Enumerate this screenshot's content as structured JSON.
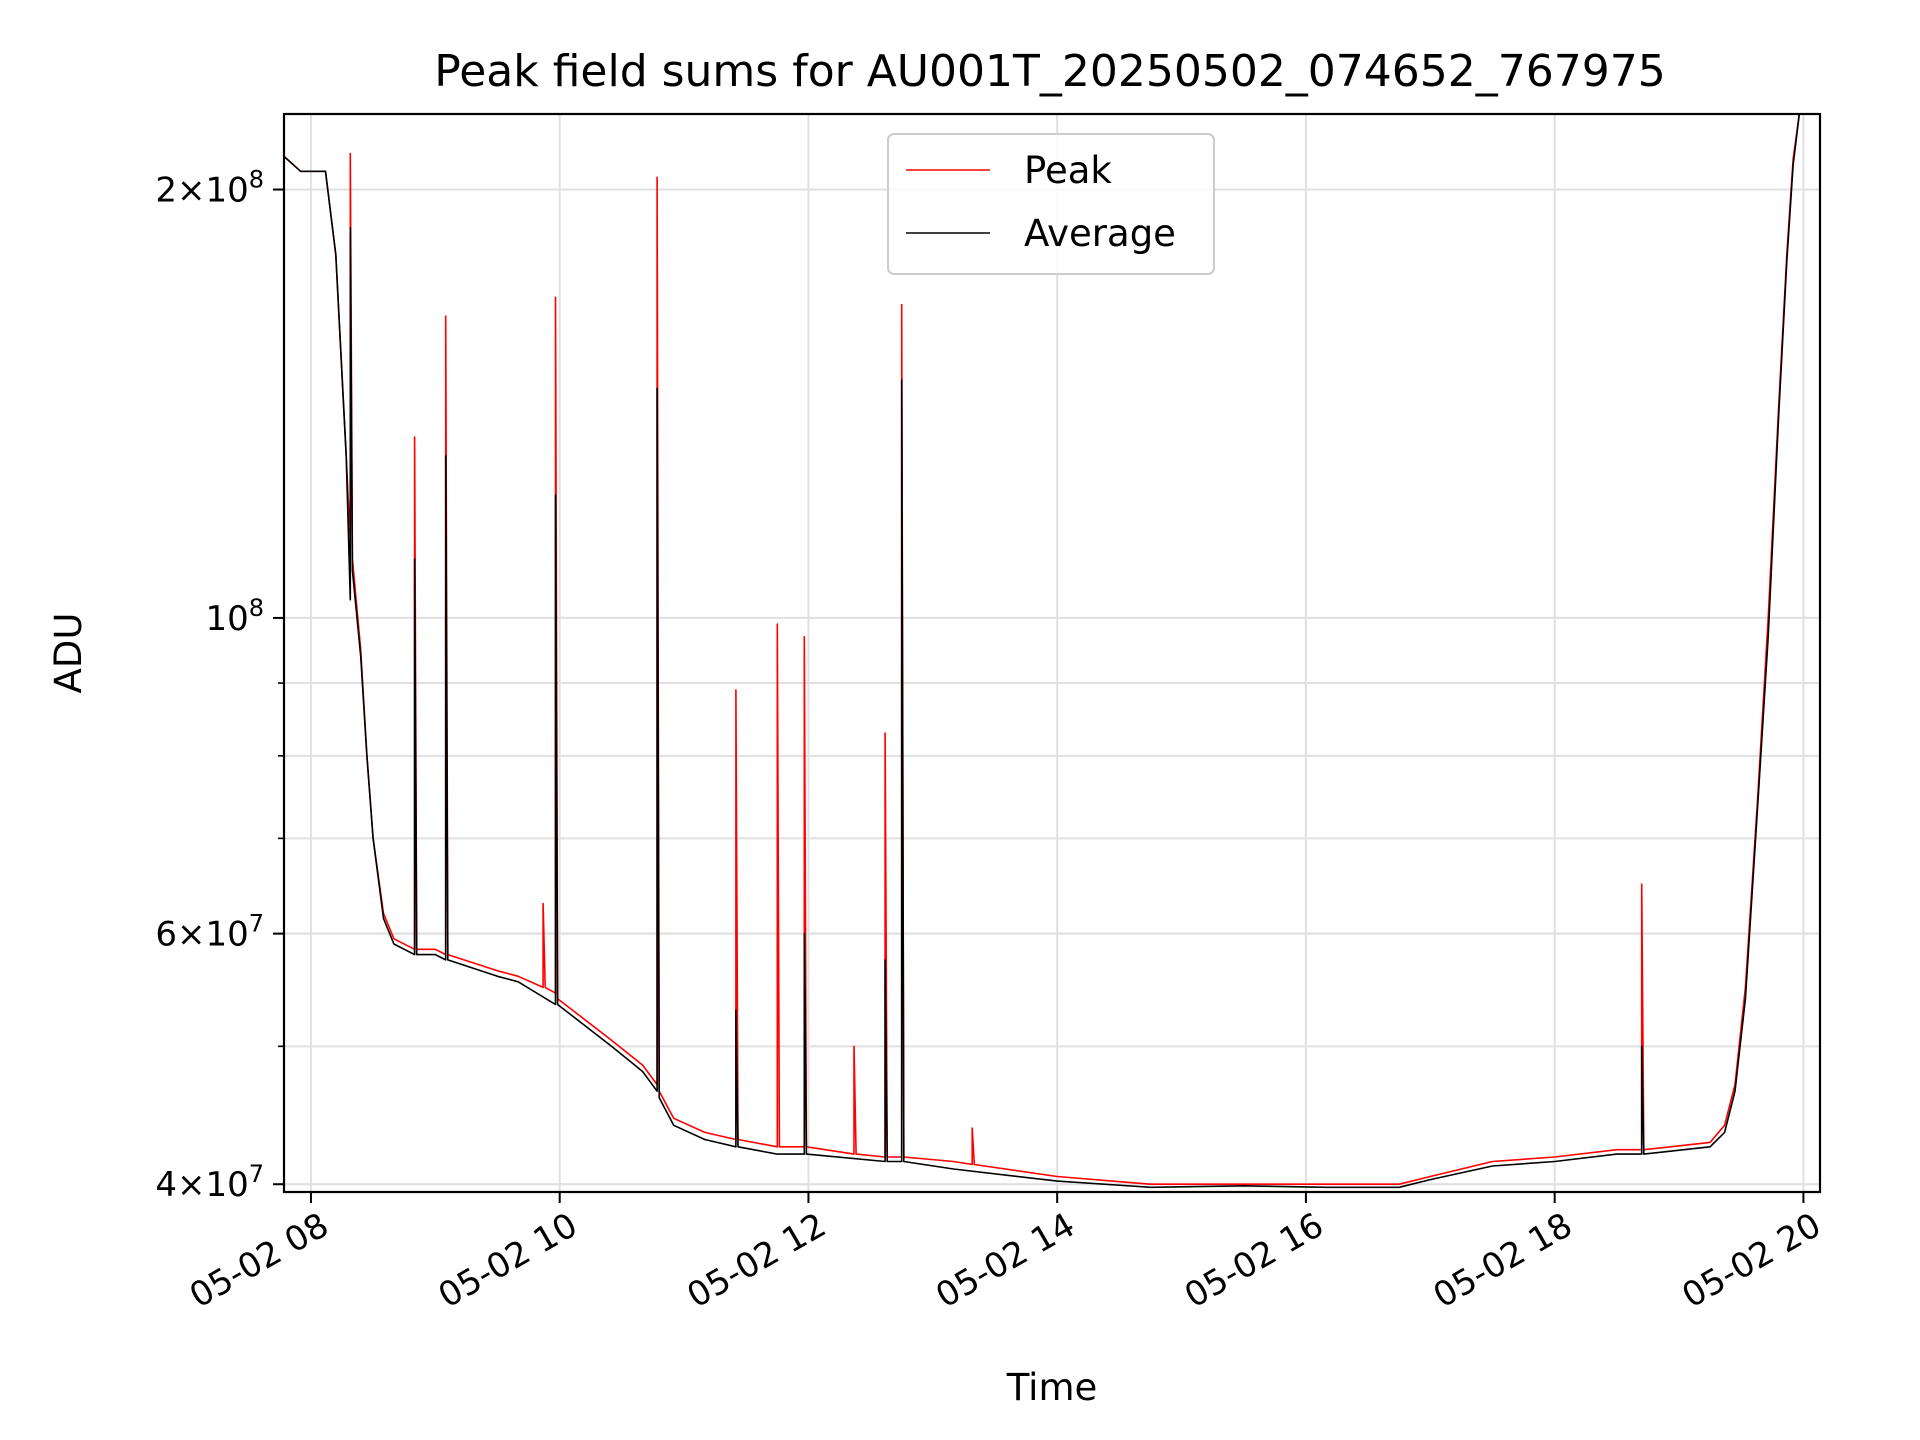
{
  "chart_data": {
    "type": "line",
    "title": "Peak field sums for AU001T_20250502_074652_767975",
    "xlabel": "Time",
    "ylabel": "ADU",
    "xscale": "time",
    "yscale": "log",
    "xlim": [
      "2025-05-02 07:47",
      "2025-05-02 20:08"
    ],
    "ylim": [
      39500000,
      226000000
    ],
    "x_ticks": [
      "05-02 08",
      "05-02 10",
      "05-02 12",
      "05-02 14",
      "05-02 16",
      "05-02 18",
      "05-02 20"
    ],
    "y_ticks": [
      {
        "value": 40000000,
        "mantissa": "4",
        "exponent": "7"
      },
      {
        "value": 60000000,
        "mantissa": "6",
        "exponent": "7"
      },
      {
        "value": 100000000,
        "mantissa": "",
        "exponent": "8"
      },
      {
        "value": 200000000,
        "mantissa": "2",
        "exponent": "8"
      }
    ],
    "grid": true,
    "legend_position": "upper center",
    "series": [
      {
        "name": "Peak",
        "color": "#ff0000",
        "points": [
          [
            "2025-05-02 07:47",
            211000000
          ],
          [
            "2025-05-02 07:55",
            206000000
          ],
          [
            "2025-05-02 08:07",
            206000000
          ],
          [
            "2025-05-02 08:12",
            180000000
          ],
          [
            "2025-05-02 08:17",
            130000000
          ],
          [
            "2025-05-02 08:19",
            113000000
          ],
          [
            "2025-05-02 08:19",
            212000000
          ],
          [
            "2025-05-02 08:20",
            110000000
          ],
          [
            "2025-05-02 08:24",
            95000000
          ],
          [
            "2025-05-02 08:27",
            80000000
          ],
          [
            "2025-05-02 08:30",
            70000000
          ],
          [
            "2025-05-02 08:35",
            62000000
          ],
          [
            "2025-05-02 08:40",
            59500000
          ],
          [
            "2025-05-02 08:50",
            58500000
          ],
          [
            "2025-05-02 08:50",
            134000000
          ],
          [
            "2025-05-02 08:51",
            58500000
          ],
          [
            "2025-05-02 09:00",
            58500000
          ],
          [
            "2025-05-02 09:05",
            58000000
          ],
          [
            "2025-05-02 09:05",
            163000000
          ],
          [
            "2025-05-02 09:06",
            58000000
          ],
          [
            "2025-05-02 09:30",
            56500000
          ],
          [
            "2025-05-02 09:40",
            56000000
          ],
          [
            "2025-05-02 09:52",
            55000000
          ],
          [
            "2025-05-02 09:52",
            63000000
          ],
          [
            "2025-05-02 09:53",
            55000000
          ],
          [
            "2025-05-02 09:58",
            54500000
          ],
          [
            "2025-05-02 09:58",
            168000000
          ],
          [
            "2025-05-02 09:59",
            54000000
          ],
          [
            "2025-05-02 10:10",
            52500000
          ],
          [
            "2025-05-02 10:25",
            50500000
          ],
          [
            "2025-05-02 10:40",
            48500000
          ],
          [
            "2025-05-02 10:47",
            47000000
          ],
          [
            "2025-05-02 10:47",
            204000000
          ],
          [
            "2025-05-02 10:48",
            46500000
          ],
          [
            "2025-05-02 10:55",
            44500000
          ],
          [
            "2025-05-02 11:10",
            43500000
          ],
          [
            "2025-05-02 11:25",
            43000000
          ],
          [
            "2025-05-02 11:25",
            89000000
          ],
          [
            "2025-05-02 11:26",
            43000000
          ],
          [
            "2025-05-02 11:45",
            42500000
          ],
          [
            "2025-05-02 11:45",
            99000000
          ],
          [
            "2025-05-02 11:46",
            42500000
          ],
          [
            "2025-05-02 11:58",
            42500000
          ],
          [
            "2025-05-02 11:58",
            97000000
          ],
          [
            "2025-05-02 11:59",
            42500000
          ],
          [
            "2025-05-02 12:22",
            42000000
          ],
          [
            "2025-05-02 12:22",
            50000000
          ],
          [
            "2025-05-02 12:23",
            42000000
          ],
          [
            "2025-05-02 12:37",
            41800000
          ],
          [
            "2025-05-02 12:37",
            83000000
          ],
          [
            "2025-05-02 12:38",
            41800000
          ],
          [
            "2025-05-02 12:45",
            41800000
          ],
          [
            "2025-05-02 12:45",
            166000000
          ],
          [
            "2025-05-02 12:46",
            41800000
          ],
          [
            "2025-05-02 13:10",
            41500000
          ],
          [
            "2025-05-02 13:19",
            41300000
          ],
          [
            "2025-05-02 13:19",
            43800000
          ],
          [
            "2025-05-02 13:20",
            41300000
          ],
          [
            "2025-05-02 14:00",
            40500000
          ],
          [
            "2025-05-02 14:45",
            40000000
          ],
          [
            "2025-05-02 15:30",
            40000000
          ],
          [
            "2025-05-02 16:10",
            40000000
          ],
          [
            "2025-05-02 16:45",
            40000000
          ],
          [
            "2025-05-02 17:00",
            40500000
          ],
          [
            "2025-05-02 17:30",
            41500000
          ],
          [
            "2025-05-02 18:00",
            41800000
          ],
          [
            "2025-05-02 18:30",
            42300000
          ],
          [
            "2025-05-02 18:42",
            42300000
          ],
          [
            "2025-05-02 18:42",
            65000000
          ],
          [
            "2025-05-02 18:43",
            42300000
          ],
          [
            "2025-05-02 19:15",
            42800000
          ],
          [
            "2025-05-02 19:22",
            44000000
          ],
          [
            "2025-05-02 19:27",
            47000000
          ],
          [
            "2025-05-02 19:32",
            55000000
          ],
          [
            "2025-05-02 19:38",
            75000000
          ],
          [
            "2025-05-02 19:43",
            100000000
          ],
          [
            "2025-05-02 19:48",
            140000000
          ],
          [
            "2025-05-02 19:52",
            180000000
          ],
          [
            "2025-05-02 19:55",
            210000000
          ],
          [
            "2025-05-02 19:58",
            226000000
          ]
        ]
      },
      {
        "name": "Average",
        "color": "#000000",
        "points": [
          [
            "2025-05-02 07:47",
            211000000
          ],
          [
            "2025-05-02 07:55",
            206000000
          ],
          [
            "2025-05-02 08:07",
            206000000
          ],
          [
            "2025-05-02 08:12",
            180000000
          ],
          [
            "2025-05-02 08:17",
            130000000
          ],
          [
            "2025-05-02 08:19",
            103000000
          ],
          [
            "2025-05-02 08:19",
            188000000
          ],
          [
            "2025-05-02 08:20",
            108000000
          ],
          [
            "2025-05-02 08:24",
            94000000
          ],
          [
            "2025-05-02 08:27",
            80000000
          ],
          [
            "2025-05-02 08:30",
            70000000
          ],
          [
            "2025-05-02 08:35",
            61500000
          ],
          [
            "2025-05-02 08:40",
            59000000
          ],
          [
            "2025-05-02 08:50",
            58000000
          ],
          [
            "2025-05-02 08:50",
            110000000
          ],
          [
            "2025-05-02 08:51",
            58000000
          ],
          [
            "2025-05-02 09:00",
            58000000
          ],
          [
            "2025-05-02 09:05",
            57500000
          ],
          [
            "2025-05-02 09:05",
            130000000
          ],
          [
            "2025-05-02 09:06",
            57500000
          ],
          [
            "2025-05-02 09:30",
            56000000
          ],
          [
            "2025-05-02 09:40",
            55500000
          ],
          [
            "2025-05-02 09:58",
            53500000
          ],
          [
            "2025-05-02 09:58",
            122000000
          ],
          [
            "2025-05-02 09:59",
            53500000
          ],
          [
            "2025-05-02 10:10",
            52000000
          ],
          [
            "2025-05-02 10:25",
            50000000
          ],
          [
            "2025-05-02 10:40",
            48000000
          ],
          [
            "2025-05-02 10:47",
            46500000
          ],
          [
            "2025-05-02 10:47",
            145000000
          ],
          [
            "2025-05-02 10:48",
            46000000
          ],
          [
            "2025-05-02 10:55",
            44000000
          ],
          [
            "2025-05-02 11:10",
            43000000
          ],
          [
            "2025-05-02 11:25",
            42500000
          ],
          [
            "2025-05-02 11:25",
            53000000
          ],
          [
            "2025-05-02 11:26",
            42500000
          ],
          [
            "2025-05-02 11:45",
            42000000
          ],
          [
            "2025-05-02 11:58",
            42000000
          ],
          [
            "2025-05-02 11:58",
            60000000
          ],
          [
            "2025-05-02 11:59",
            42000000
          ],
          [
            "2025-05-02 12:37",
            41500000
          ],
          [
            "2025-05-02 12:37",
            57500000
          ],
          [
            "2025-05-02 12:38",
            41500000
          ],
          [
            "2025-05-02 12:45",
            41500000
          ],
          [
            "2025-05-02 12:45",
            147000000
          ],
          [
            "2025-05-02 12:46",
            41500000
          ],
          [
            "2025-05-02 13:10",
            41000000
          ],
          [
            "2025-05-02 14:00",
            40200000
          ],
          [
            "2025-05-02 14:45",
            39800000
          ],
          [
            "2025-05-02 15:30",
            39900000
          ],
          [
            "2025-05-02 16:10",
            39800000
          ],
          [
            "2025-05-02 16:45",
            39800000
          ],
          [
            "2025-05-02 17:00",
            40300000
          ],
          [
            "2025-05-02 17:30",
            41200000
          ],
          [
            "2025-05-02 18:00",
            41500000
          ],
          [
            "2025-05-02 18:30",
            42000000
          ],
          [
            "2025-05-02 18:42",
            42000000
          ],
          [
            "2025-05-02 18:42",
            50000000
          ],
          [
            "2025-05-02 18:43",
            42000000
          ],
          [
            "2025-05-02 19:15",
            42500000
          ],
          [
            "2025-05-02 19:22",
            43500000
          ],
          [
            "2025-05-02 19:27",
            46500000
          ],
          [
            "2025-05-02 19:32",
            54000000
          ],
          [
            "2025-05-02 19:38",
            74000000
          ],
          [
            "2025-05-02 19:43",
            97000000
          ],
          [
            "2025-05-02 19:48",
            138000000
          ],
          [
            "2025-05-02 19:52",
            178000000
          ],
          [
            "2025-05-02 19:55",
            208000000
          ],
          [
            "2025-05-02 19:58",
            226000000
          ]
        ]
      }
    ]
  }
}
